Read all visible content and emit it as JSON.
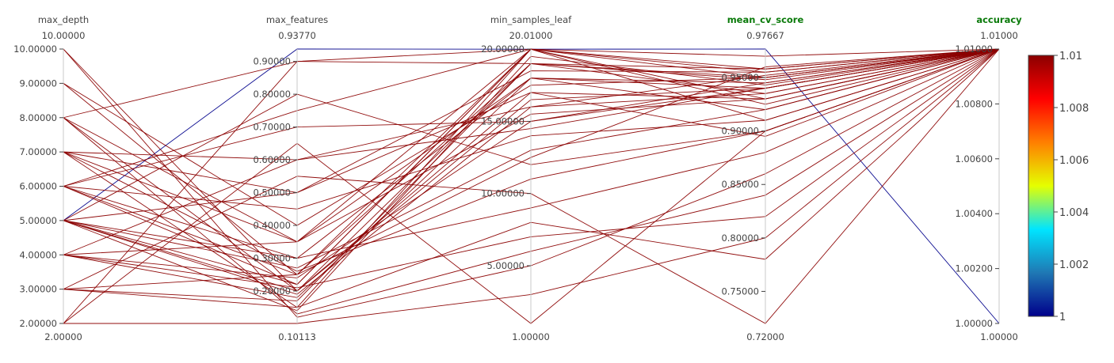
{
  "chart_data": {
    "type": "parallel_coordinates",
    "axes": [
      {
        "name": "max_depth",
        "highlight": false,
        "range": [
          2,
          10
        ],
        "range_labels": [
          "2.00000",
          "10.00000"
        ],
        "ticks": [
          {
            "v": 2,
            "label": "2.00000"
          },
          {
            "v": 3,
            "label": "3.00000"
          },
          {
            "v": 4,
            "label": "4.00000"
          },
          {
            "v": 5,
            "label": "5.00000"
          },
          {
            "v": 6,
            "label": "6.00000"
          },
          {
            "v": 7,
            "label": "7.00000"
          },
          {
            "v": 8,
            "label": "8.00000"
          },
          {
            "v": 9,
            "label": "9.00000"
          },
          {
            "v": 10,
            "label": "10.00000"
          }
        ]
      },
      {
        "name": "max_features",
        "highlight": false,
        "range": [
          0.10113,
          0.9377
        ],
        "range_labels": [
          "0.10113",
          "0.93770"
        ],
        "ticks": [
          {
            "v": 0.2,
            "label": "0.20000"
          },
          {
            "v": 0.3,
            "label": "0.30000"
          },
          {
            "v": 0.4,
            "label": "0.40000"
          },
          {
            "v": 0.5,
            "label": "0.50000"
          },
          {
            "v": 0.6,
            "label": "0.60000"
          },
          {
            "v": 0.7,
            "label": "0.70000"
          },
          {
            "v": 0.8,
            "label": "0.80000"
          },
          {
            "v": 0.9,
            "label": "0.90000"
          }
        ]
      },
      {
        "name": "min_samples_leaf",
        "highlight": false,
        "range": [
          1,
          20.01
        ],
        "range_labels": [
          "1.00000",
          "20.01000"
        ],
        "ticks": [
          {
            "v": 5,
            "label": "5.00000"
          },
          {
            "v": 10,
            "label": "10.00000"
          },
          {
            "v": 15,
            "label": "15.00000"
          },
          {
            "v": 20,
            "label": "20.00000"
          }
        ]
      },
      {
        "name": "mean_cv_score",
        "highlight": true,
        "range": [
          0.72,
          0.97667
        ],
        "range_labels": [
          "0.72000",
          "0.97667"
        ],
        "ticks": [
          {
            "v": 0.75,
            "label": "0.75000"
          },
          {
            "v": 0.8,
            "label": "0.80000"
          },
          {
            "v": 0.85,
            "label": "0.85000"
          },
          {
            "v": 0.9,
            "label": "0.90000"
          },
          {
            "v": 0.95,
            "label": "0.95000"
          }
        ]
      },
      {
        "name": "accuracy",
        "highlight": true,
        "range": [
          1.0,
          1.01
        ],
        "range_labels": [
          "1.00000",
          "1.01000"
        ],
        "ticks": [
          {
            "v": 1.0,
            "label": "1.00000"
          },
          {
            "v": 1.002,
            "label": "1.00200"
          },
          {
            "v": 1.004,
            "label": "1.00400"
          },
          {
            "v": 1.006,
            "label": "1.00600"
          },
          {
            "v": 1.008,
            "label": "1.00800"
          },
          {
            "v": 1.01,
            "label": "1.01000"
          }
        ]
      }
    ],
    "lines": [
      {
        "v": [
          5,
          0.9377,
          20,
          0.97667,
          1.0
        ],
        "c": 1.0
      },
      {
        "v": [
          10,
          0.2,
          19,
          0.958,
          1.01
        ],
        "c": 1.01
      },
      {
        "v": [
          9,
          0.25,
          20,
          0.95,
          1.01
        ],
        "c": 1.01
      },
      {
        "v": [
          8,
          0.35,
          18,
          0.945,
          1.01
        ],
        "c": 1.01
      },
      {
        "v": [
          8,
          0.9,
          19,
          0.935,
          1.01
        ],
        "c": 1.01
      },
      {
        "v": [
          7,
          0.5,
          17,
          0.93,
          1.01
        ],
        "c": 1.01
      },
      {
        "v": [
          7,
          0.15,
          20,
          0.925,
          1.01
        ],
        "c": 1.01
      },
      {
        "v": [
          7,
          0.6,
          16,
          0.952,
          1.01
        ],
        "c": 1.01
      },
      {
        "v": [
          6,
          0.7,
          15,
          0.94,
          1.01
        ],
        "c": 1.01
      },
      {
        "v": [
          6,
          0.3,
          18,
          0.92,
          1.01
        ],
        "c": 1.01
      },
      {
        "v": [
          6,
          0.45,
          14,
          0.91,
          1.01
        ],
        "c": 1.01
      },
      {
        "v": [
          6,
          0.25,
          19,
          0.948,
          1.01
        ],
        "c": 1.01
      },
      {
        "v": [
          5,
          0.8,
          12,
          0.9,
          1.01
        ],
        "c": 1.01
      },
      {
        "v": [
          5,
          0.2,
          17,
          0.895,
          1.01
        ],
        "c": 1.01
      },
      {
        "v": [
          5,
          0.22,
          20,
          0.955,
          1.01
        ],
        "c": 1.01
      },
      {
        "v": [
          5,
          0.19,
          16,
          0.935,
          1.01
        ],
        "c": 1.01
      },
      {
        "v": [
          5,
          0.27,
          13,
          0.92,
          1.01
        ],
        "c": 1.01
      },
      {
        "v": [
          5,
          0.3,
          9,
          0.88,
          1.01
        ],
        "c": 1.01
      },
      {
        "v": [
          4,
          0.18,
          18,
          0.94,
          1.01
        ],
        "c": 1.01
      },
      {
        "v": [
          4,
          0.24,
          15,
          0.945,
          1.01
        ],
        "c": 1.01
      },
      {
        "v": [
          4,
          0.21,
          7,
          0.82,
          1.01
        ],
        "c": 1.01
      },
      {
        "v": [
          4,
          0.35,
          20,
          0.93,
          1.01
        ],
        "c": 1.01
      },
      {
        "v": [
          3,
          0.55,
          10,
          0.72,
          1.01
        ],
        "c": 1.01
      },
      {
        "v": [
          3,
          0.17,
          19,
          0.95,
          1.01
        ],
        "c": 1.01
      },
      {
        "v": [
          3,
          0.15,
          8,
          0.78,
          1.01
        ],
        "c": 1.01
      },
      {
        "v": [
          2,
          0.9,
          20,
          0.958,
          1.01
        ],
        "c": 1.01
      },
      {
        "v": [
          2,
          0.10113,
          3,
          0.8,
          1.01
        ],
        "c": 1.01
      },
      {
        "v": [
          2,
          0.65,
          1,
          0.9,
          1.01
        ],
        "c": 1.01
      },
      {
        "v": [
          10,
          0.12,
          5,
          0.86,
          1.01
        ],
        "c": 1.01
      },
      {
        "v": [
          9,
          0.4,
          17.5,
          0.95,
          1.01
        ],
        "c": 1.01
      },
      {
        "v": [
          8,
          0.2,
          16.5,
          0.94,
          1.01
        ],
        "c": 1.01
      },
      {
        "v": [
          7,
          0.35,
          15.5,
          0.93,
          1.01
        ],
        "c": 1.01
      },
      {
        "v": [
          6,
          0.22,
          20,
          0.91,
          1.01
        ],
        "c": 1.01
      },
      {
        "v": [
          5,
          0.5,
          18.5,
          0.955,
          1.01
        ],
        "c": 1.01
      },
      {
        "v": [
          4,
          0.6,
          14.5,
          0.94,
          1.01
        ],
        "c": 1.01
      },
      {
        "v": [
          3,
          0.25,
          12.5,
          0.96,
          1.01
        ],
        "c": 1.01
      },
      {
        "v": [
          8,
          0.13,
          6,
          0.84,
          1.01
        ],
        "c": 1.01
      },
      {
        "v": [
          7,
          0.26,
          11,
          0.9,
          1.01
        ],
        "c": 1.01
      },
      {
        "v": [
          6,
          0.75,
          20,
          0.97,
          1.01
        ],
        "c": 1.01
      },
      {
        "v": [
          5,
          0.14,
          19.5,
          0.943,
          1.01
        ],
        "c": 1.01
      }
    ],
    "colorbar": {
      "ticks": [
        {
          "v": 1.0,
          "label": "1"
        },
        {
          "v": 1.002,
          "label": "1.002"
        },
        {
          "v": 1.004,
          "label": "1.004"
        },
        {
          "v": 1.006,
          "label": "1.006"
        },
        {
          "v": 1.008,
          "label": "1.008"
        },
        {
          "v": 1.01,
          "label": "1.01"
        }
      ],
      "range": [
        1.0,
        1.01
      ],
      "colors": [
        "#00008b",
        "#1f78b4",
        "#00e5ff",
        "#e5ff00",
        "#ff7f00",
        "#ff0000",
        "#8b0000"
      ]
    }
  }
}
